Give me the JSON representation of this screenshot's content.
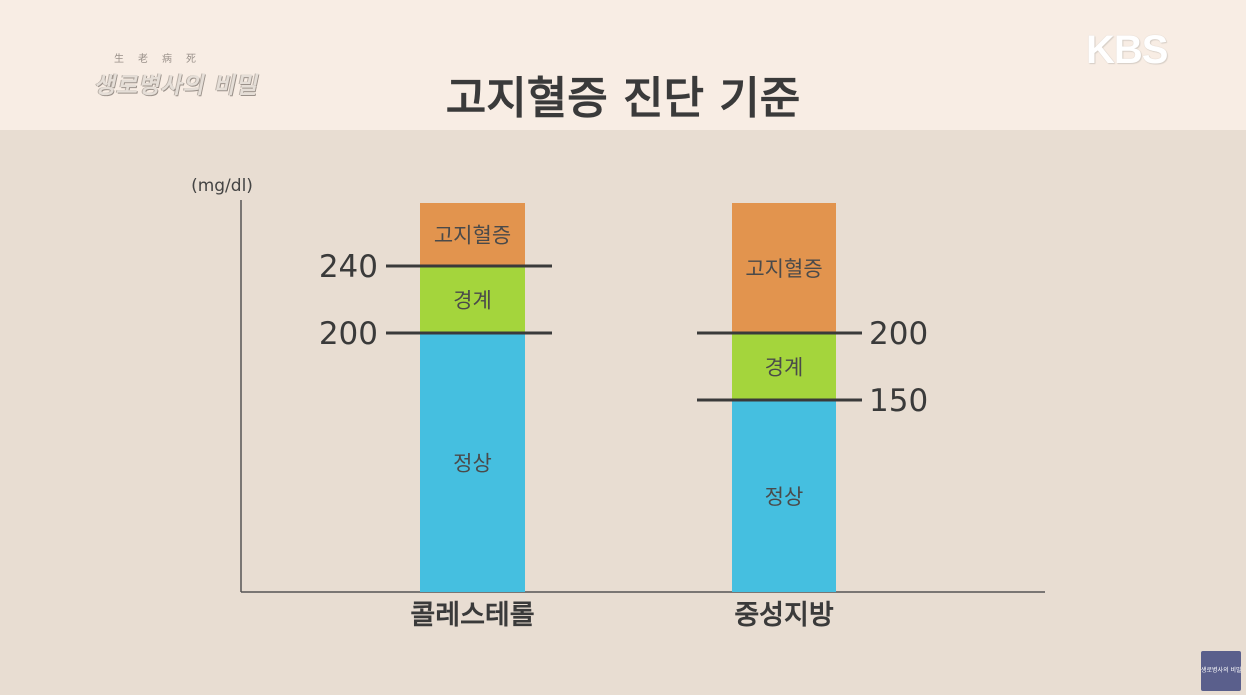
{
  "header": {
    "show_logo_small": "生老病死",
    "show_logo_main": "생로병사의 비밀",
    "title": "고지혈증 진단 기준",
    "broadcaster_logo": "KBS"
  },
  "corner_badge": {
    "text": "생로병사의 비밀"
  },
  "colors": {
    "header_bg": "#f8ede4",
    "body_bg": "#e8ddd2",
    "normal": "#45bfe0",
    "borderline": "#a4d53c",
    "high": "#e2944e",
    "line": "#3a3a3a"
  },
  "chart_data": {
    "type": "bar",
    "subtype": "stacked-range",
    "unit_label": "(mg/dl)",
    "categories": [
      "콜레스테롤",
      "중성지방"
    ],
    "zones": [
      {
        "name": "정상",
        "color": "#45bfe0"
      },
      {
        "name": "경계",
        "color": "#a4d53c"
      },
      {
        "name": "고지혈증",
        "color": "#e2944e"
      }
    ],
    "bars": [
      {
        "category": "콜레스테롤",
        "segments": [
          {
            "label": "정상",
            "from": 0,
            "to": 200,
            "color": "#45bfe0"
          },
          {
            "label": "경계",
            "from": 200,
            "to": 240,
            "color": "#a4d53c"
          },
          {
            "label": "고지혈증",
            "from": 240,
            "to": 270,
            "color": "#e2944e"
          }
        ],
        "thresholds": [
          {
            "value": 240,
            "label": "240",
            "label_side": "left"
          },
          {
            "value": 200,
            "label": "200",
            "label_side": "left"
          }
        ]
      },
      {
        "category": "중성지방",
        "segments": [
          {
            "label": "정상",
            "from": 0,
            "to": 150,
            "color": "#45bfe0"
          },
          {
            "label": "경계",
            "from": 150,
            "to": 200,
            "color": "#a4d53c"
          },
          {
            "label": "고지혈증",
            "from": 200,
            "to": 300,
            "color": "#e2944e"
          }
        ],
        "thresholds": [
          {
            "value": 200,
            "label": "200",
            "label_side": "right"
          },
          {
            "value": 150,
            "label": "150",
            "label_side": "right"
          }
        ]
      }
    ],
    "grid": false,
    "legend": "none"
  }
}
